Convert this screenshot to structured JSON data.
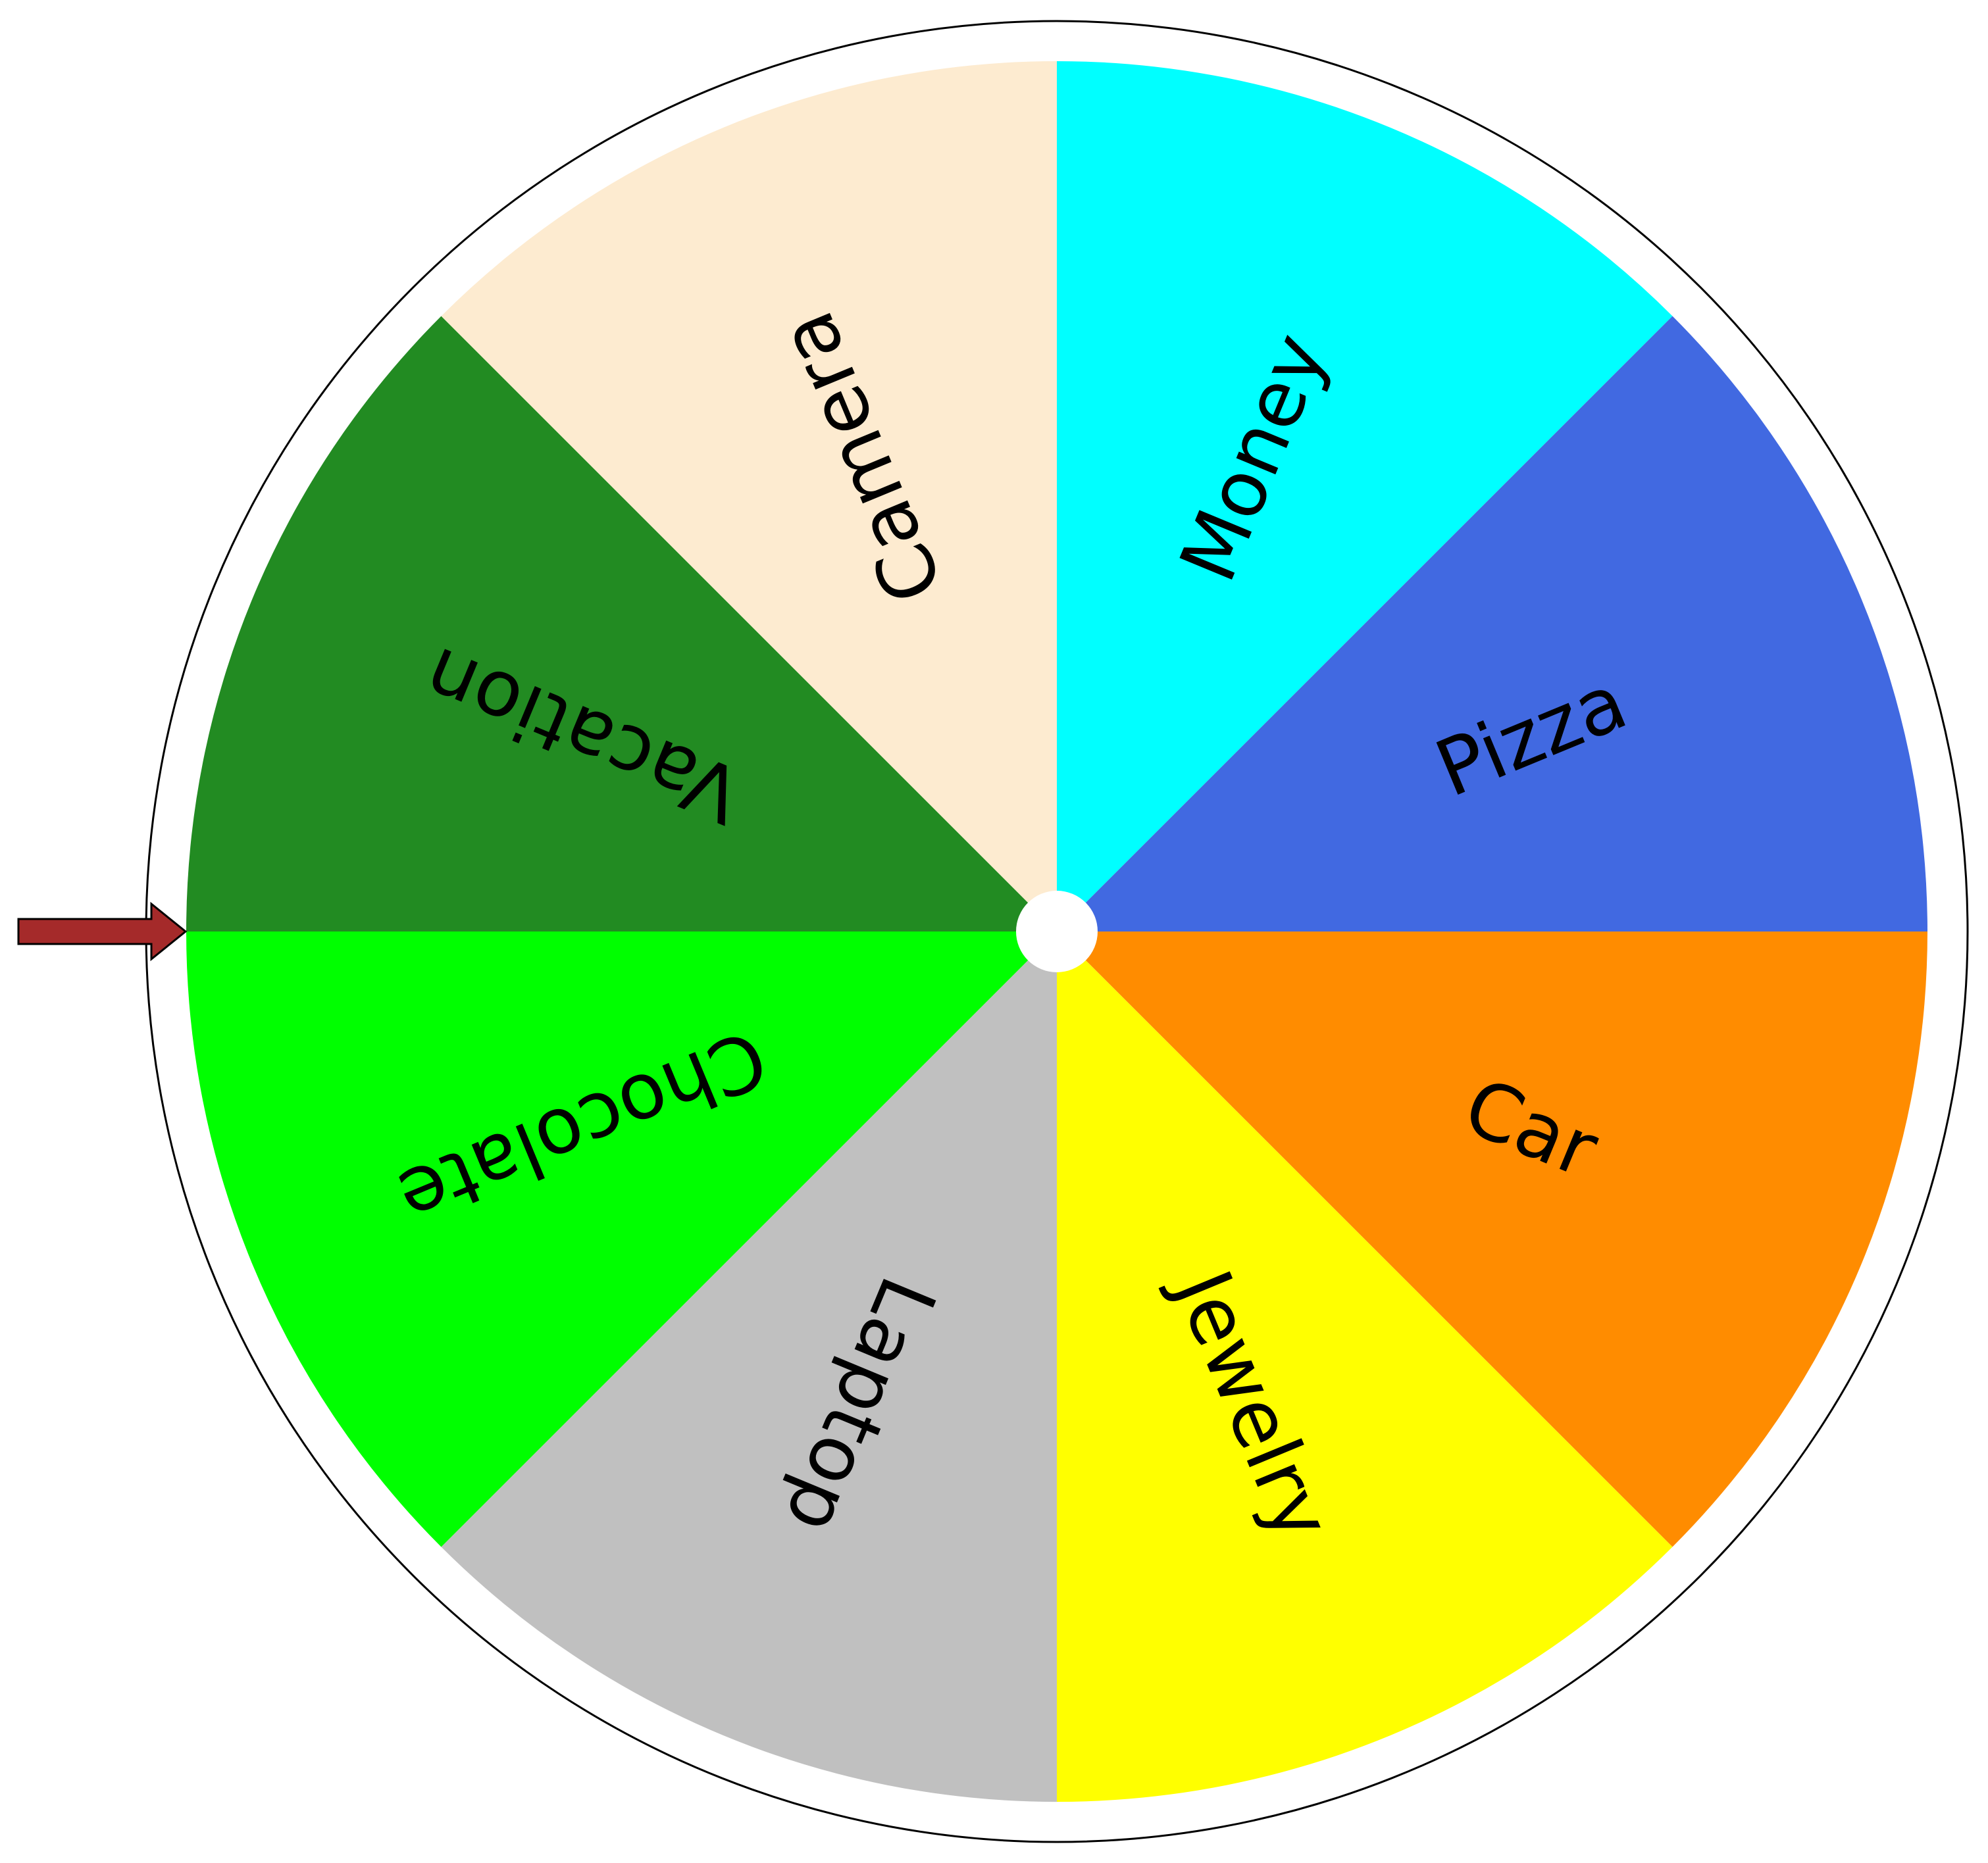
{
  "wheel": {
    "segments": [
      {
        "label": "Money",
        "color": "#00FFFF"
      },
      {
        "label": "Pizza",
        "color": "#4169E1"
      },
      {
        "label": "Car",
        "color": "#FF8C00"
      },
      {
        "label": "Jewelry",
        "color": "#FFFF00"
      },
      {
        "label": "Laptop",
        "color": "#C0C0C0"
      },
      {
        "label": "Chocolate",
        "color": "#00FF00"
      },
      {
        "label": "Vacation",
        "color": "#228B22"
      },
      {
        "label": "Camera",
        "color": "#FDEBD0"
      }
    ],
    "rim_color": "#FFFFFF",
    "outline_color": "#000000",
    "hub_color": "#FFFFFF"
  },
  "pointer": {
    "icon": "arrow-right-icon",
    "color": "#A52A2A",
    "outline_color": "#000000"
  }
}
